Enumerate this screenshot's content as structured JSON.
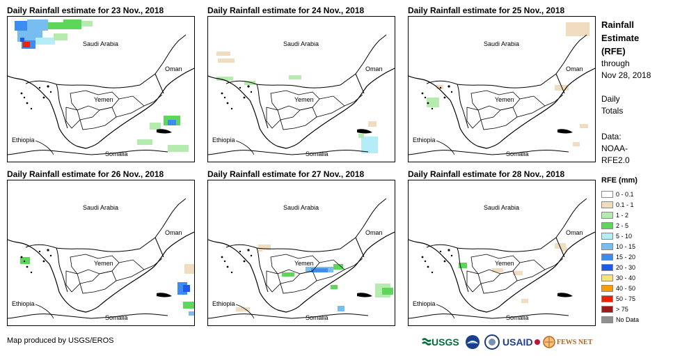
{
  "panels": [
    {
      "title": "Daily Rainfall estimate for 23 Nov., 2018"
    },
    {
      "title": "Daily Rainfall estimate for 24 Nov., 2018"
    },
    {
      "title": "Daily Rainfall estimate for 25 Nov., 2018"
    },
    {
      "title": "Daily Rainfall estimate for 26 Nov., 2018"
    },
    {
      "title": "Daily Rainfall estimate for 27 Nov., 2018"
    },
    {
      "title": "Daily Rainfall estimate for 28 Nov., 2018"
    }
  ],
  "map_labels": {
    "saudi": "Saudi Arabia",
    "oman": "Oman",
    "yemen": "Yemen",
    "ethiopia": "Ethiopia",
    "somalia": "Somalia"
  },
  "sidebar": {
    "title_lines": [
      "Rainfall",
      "Estimate",
      "(RFE)"
    ],
    "through_lines": [
      "through",
      "Nov 28, 2018"
    ],
    "daily_lines": [
      "Daily",
      "Totals"
    ],
    "data_lines": [
      "Data:",
      "NOAA-",
      "RFE2.0"
    ],
    "legend_title": "RFE (mm)"
  },
  "legend": [
    {
      "label": "0 - 0.1",
      "color": "#ffffff"
    },
    {
      "label": "0.1 - 1",
      "color": "#f0dcbe"
    },
    {
      "label": "1 - 2",
      "color": "#b6ebb0"
    },
    {
      "label": "2 - 5",
      "color": "#5ed65a"
    },
    {
      "label": "5 - 10",
      "color": "#b4ecf8"
    },
    {
      "label": "10 - 15",
      "color": "#78bdf0"
    },
    {
      "label": "15 - 20",
      "color": "#3c8cf2"
    },
    {
      "label": "20 - 30",
      "color": "#1c5ae8"
    },
    {
      "label": "30 - 40",
      "color": "#f8e27a"
    },
    {
      "label": "40 - 50",
      "color": "#f5a000"
    },
    {
      "label": "50 - 75",
      "color": "#ee2200"
    },
    {
      "label": "> 75",
      "color": "#a01818"
    },
    {
      "label": "No Data",
      "color": "#909090"
    }
  ],
  "credit": "Map produced by USGS/EROS",
  "logos": {
    "usgs": "USGS",
    "usaid": "USAID",
    "fews": "FEWS NET"
  }
}
